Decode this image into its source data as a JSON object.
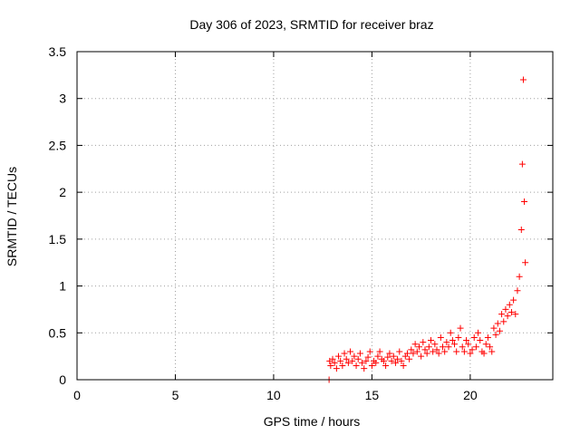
{
  "chart_data": {
    "type": "scatter",
    "title": "Day 306 of 2023, SRMTID for receiver braz",
    "xlabel": "GPS time / hours",
    "ylabel": "SRMTID / TECUs",
    "xlim": [
      0,
      24.2
    ],
    "ylim": [
      0,
      3.5
    ],
    "xticks": [
      0,
      5,
      10,
      15,
      20
    ],
    "yticks": [
      0,
      0.5,
      1,
      1.5,
      2,
      2.5,
      3,
      3.5
    ],
    "xtick_labels": [
      "0",
      "5",
      "10",
      "15",
      "20"
    ],
    "ytick_labels": [
      "0",
      "0.5",
      "1",
      "1.5",
      "2",
      "2.5",
      "3",
      "3.5"
    ],
    "grid": true,
    "marker": "+",
    "color": "#ff0000",
    "series": [
      {
        "name": "SRMTID",
        "x": [
          12.82,
          12.85,
          12.9,
          13.0,
          13.1,
          13.2,
          13.3,
          13.4,
          13.5,
          13.6,
          13.7,
          13.8,
          13.9,
          14.0,
          14.1,
          14.2,
          14.3,
          14.4,
          14.5,
          14.6,
          14.7,
          14.8,
          14.9,
          15.0,
          15.1,
          15.2,
          15.3,
          15.4,
          15.5,
          15.6,
          15.7,
          15.8,
          15.9,
          16.0,
          16.1,
          16.2,
          16.3,
          16.4,
          16.5,
          16.6,
          16.7,
          16.8,
          16.9,
          17.0,
          17.1,
          17.2,
          17.3,
          17.4,
          17.5,
          17.6,
          17.7,
          17.8,
          17.9,
          18.0,
          18.1,
          18.2,
          18.3,
          18.4,
          18.5,
          18.6,
          18.7,
          18.8,
          18.9,
          19.0,
          19.1,
          19.2,
          19.3,
          19.4,
          19.5,
          19.6,
          19.7,
          19.8,
          19.9,
          20.0,
          20.1,
          20.2,
          20.3,
          20.4,
          20.5,
          20.6,
          20.7,
          20.8,
          20.9,
          21.0,
          21.1,
          21.2,
          21.3,
          21.4,
          21.5,
          21.6,
          21.7,
          21.8,
          21.9,
          22.0,
          22.1,
          22.2,
          22.3,
          22.4,
          22.5,
          22.6,
          22.65,
          22.7,
          22.75,
          22.8
        ],
        "y": [
          0.0,
          0.2,
          0.15,
          0.22,
          0.18,
          0.12,
          0.25,
          0.2,
          0.15,
          0.28,
          0.22,
          0.18,
          0.3,
          0.2,
          0.25,
          0.15,
          0.22,
          0.28,
          0.18,
          0.12,
          0.2,
          0.24,
          0.3,
          0.15,
          0.2,
          0.18,
          0.25,
          0.3,
          0.22,
          0.2,
          0.15,
          0.24,
          0.28,
          0.2,
          0.25,
          0.18,
          0.22,
          0.3,
          0.2,
          0.15,
          0.25,
          0.28,
          0.22,
          0.32,
          0.28,
          0.38,
          0.3,
          0.35,
          0.25,
          0.4,
          0.32,
          0.28,
          0.35,
          0.42,
          0.3,
          0.38,
          0.32,
          0.28,
          0.45,
          0.35,
          0.3,
          0.4,
          0.35,
          0.5,
          0.42,
          0.38,
          0.3,
          0.45,
          0.55,
          0.35,
          0.3,
          0.42,
          0.38,
          0.28,
          0.32,
          0.45,
          0.35,
          0.5,
          0.42,
          0.3,
          0.28,
          0.38,
          0.45,
          0.35,
          0.3,
          0.55,
          0.48,
          0.6,
          0.52,
          0.7,
          0.62,
          0.75,
          0.68,
          0.8,
          0.72,
          0.85,
          0.7,
          0.95,
          1.1,
          1.6,
          2.3,
          3.2,
          1.9,
          1.25
        ]
      }
    ]
  }
}
